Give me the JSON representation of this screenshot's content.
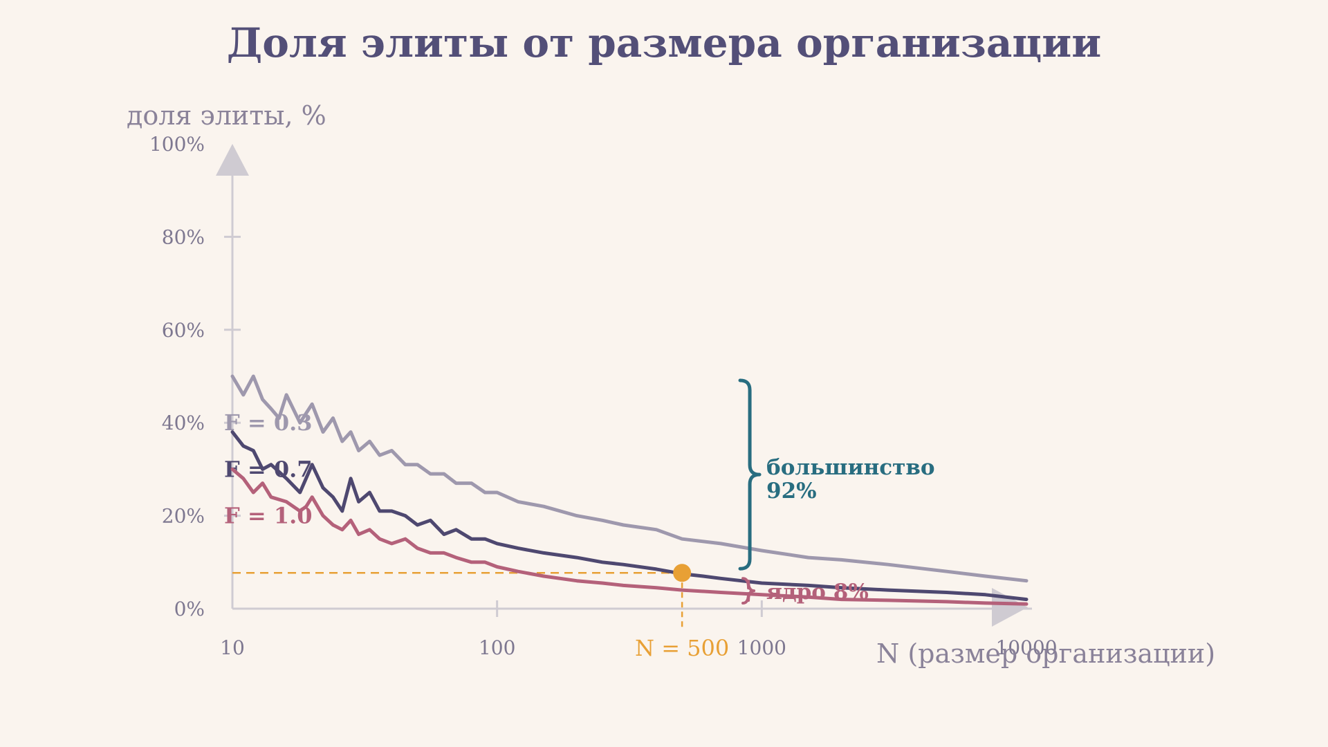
{
  "chart_data": {
    "type": "line",
    "title": "Доля элиты от размера организации",
    "ylabel": "доля элиты, %",
    "xlabel": "N (размер организации)",
    "x_scale": "log",
    "xlim": [
      10,
      10000
    ],
    "ylim": [
      0,
      100
    ],
    "x_ticks": [
      {
        "value": 10,
        "label": "10"
      },
      {
        "value": 100,
        "label": "100"
      },
      {
        "value": 1000,
        "label": "1000"
      },
      {
        "value": 10000,
        "label": "10000"
      }
    ],
    "y_ticks": [
      {
        "value": 0,
        "label": "0%"
      },
      {
        "value": 20,
        "label": "20%"
      },
      {
        "value": 40,
        "label": "40%"
      },
      {
        "value": 60,
        "label": "60%"
      },
      {
        "value": 80,
        "label": "80%"
      },
      {
        "value": 100,
        "label": "100%"
      }
    ],
    "grid": false,
    "legend": "inline-left",
    "series": [
      {
        "name": "F = 0.3",
        "color": "#9e98ad",
        "x": [
          10,
          11,
          12,
          13,
          14,
          15,
          16,
          18,
          20,
          22,
          24,
          26,
          28,
          30,
          33,
          36,
          40,
          45,
          50,
          56,
          63,
          70,
          80,
          90,
          100,
          120,
          150,
          200,
          250,
          300,
          400,
          500,
          700,
          1000,
          1500,
          2000,
          3000,
          5000,
          7000,
          10000
        ],
        "y": [
          50,
          46,
          50,
          45,
          43,
          41,
          46,
          40,
          44,
          38,
          41,
          36,
          38,
          34,
          36,
          33,
          34,
          31,
          31,
          29,
          29,
          27,
          27,
          25,
          25,
          23,
          22,
          20,
          19,
          18,
          17,
          15,
          14,
          12.5,
          11,
          10.5,
          9.5,
          8,
          7,
          6
        ]
      },
      {
        "name": "F = 0.7",
        "color": "#4e4870",
        "x": [
          10,
          11,
          12,
          13,
          14,
          16,
          18,
          20,
          22,
          24,
          26,
          28,
          30,
          33,
          36,
          40,
          45,
          50,
          56,
          63,
          70,
          80,
          90,
          100,
          120,
          150,
          200,
          250,
          300,
          400,
          500,
          600,
          700,
          1000,
          1500,
          2000,
          3000,
          5000,
          7000,
          10000
        ],
        "y": [
          38,
          35,
          34,
          30,
          31,
          28,
          25,
          31,
          26,
          24,
          21,
          28,
          23,
          25,
          21,
          21,
          20,
          18,
          19,
          16,
          17,
          15,
          15,
          14,
          13,
          12,
          11,
          10,
          9.5,
          8.5,
          7.5,
          7,
          6.5,
          5.5,
          5,
          4.5,
          4,
          3.5,
          3,
          2
        ]
      },
      {
        "name": "F = 1.0",
        "color": "#b4617a",
        "x": [
          10,
          11,
          12,
          13,
          14,
          16,
          18,
          19,
          20,
          22,
          24,
          26,
          28,
          30,
          33,
          36,
          40,
          45,
          50,
          56,
          63,
          70,
          80,
          90,
          100,
          120,
          150,
          200,
          250,
          300,
          400,
          500,
          700,
          1000,
          1500,
          2000,
          3000,
          5000,
          7000,
          10000
        ],
        "y": [
          30,
          28,
          25,
          27,
          24,
          23,
          21,
          22,
          24,
          20,
          18,
          17,
          19,
          16,
          17,
          15,
          14,
          15,
          13,
          12,
          12,
          11,
          10,
          10,
          9,
          8,
          7,
          6,
          5.5,
          5,
          4.5,
          4,
          3.5,
          3,
          2.5,
          2,
          1.8,
          1.5,
          1.2,
          1
        ]
      }
    ],
    "reference": {
      "x": 500,
      "y": 7.7,
      "label": "N = 500",
      "color": "#e8a035"
    },
    "annotations": [
      {
        "id": "majority",
        "line1": "большинство",
        "line2": "92%",
        "color": "#286d80",
        "x": 700,
        "y_from": 7.7,
        "y_to": 50
      },
      {
        "id": "core",
        "text": "ядро 8%",
        "color": "#b4617a",
        "x": 700,
        "y_from": 0,
        "y_to": 7.7
      }
    ]
  }
}
